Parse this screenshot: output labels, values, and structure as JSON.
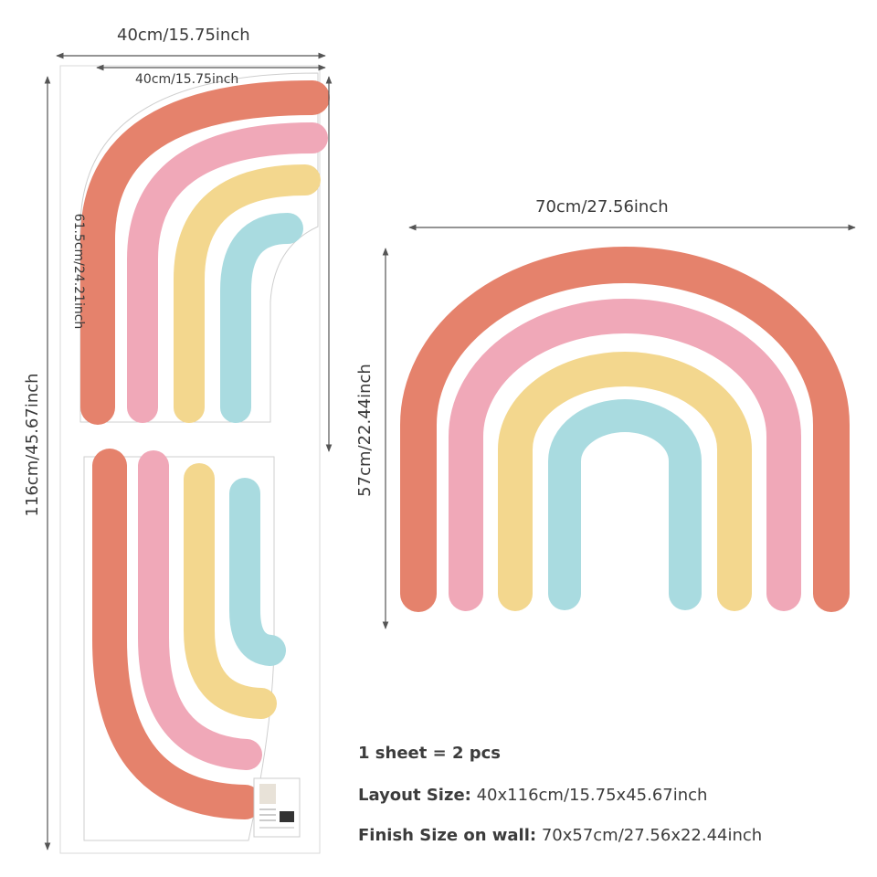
{
  "dimensions": {
    "sheet_width": "40cm/15.75inch",
    "piece_width": "40cm/15.75inch",
    "piece_height": "61.5cm/24.21inch",
    "sheet_height": "116cm/45.67inch",
    "finish_width": "70cm/27.56inch",
    "finish_height": "57cm/22.44inch"
  },
  "info": {
    "pieces": "1 sheet = 2 pcs",
    "layout_label": "Layout Size:",
    "layout_value": "40x116cm/15.75x45.67inch",
    "finish_label": "Finish Size on wall:",
    "finish_value": "70x57cm/27.56x22.44inch"
  },
  "colors": {
    "coral": "#e5826c",
    "pink": "#f0a8b8",
    "yellow": "#f3d78e",
    "blue": "#a9dbe0",
    "line": "#555555"
  }
}
